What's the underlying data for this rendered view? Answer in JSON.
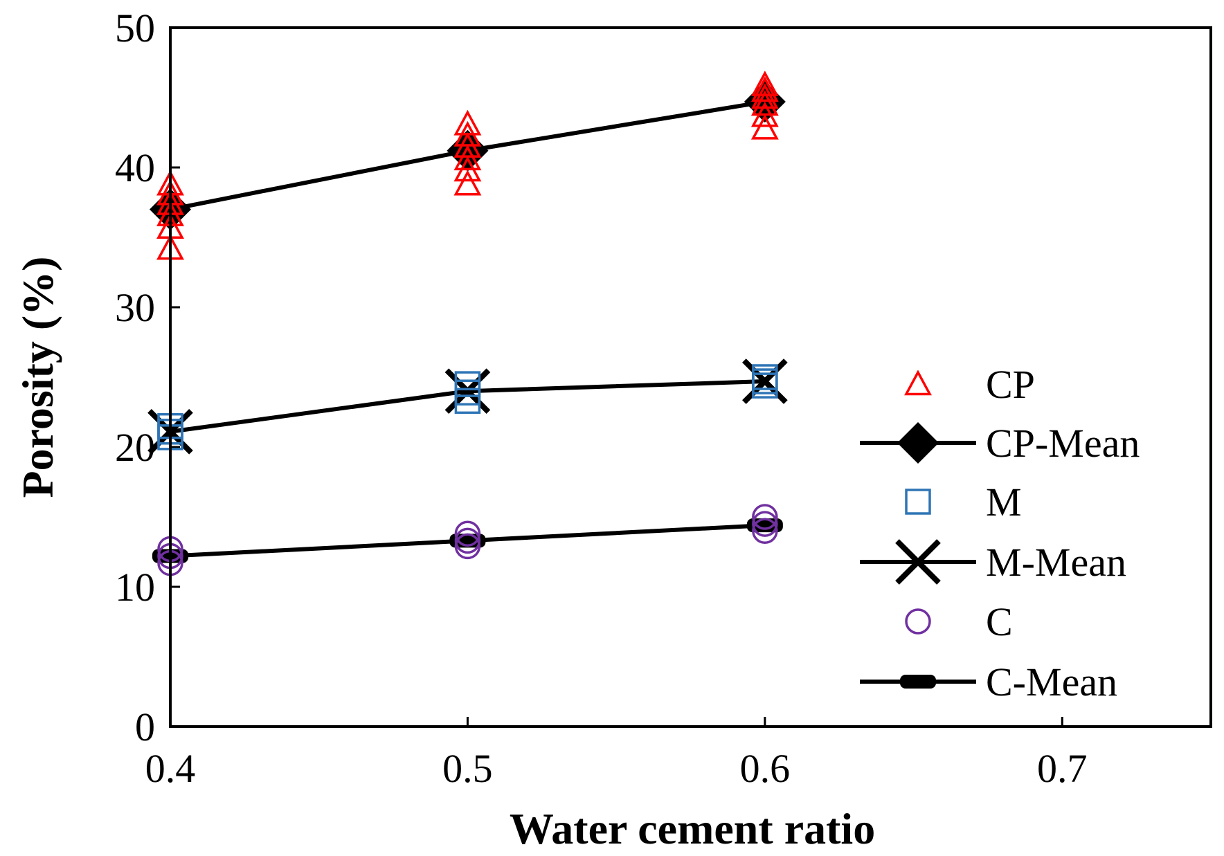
{
  "chart_data": {
    "type": "scatter",
    "title": "",
    "xlabel": "Water cement ratio",
    "ylabel": "Porosity (%)",
    "xlim": [
      0.4,
      0.75
    ],
    "ylim": [
      0,
      50
    ],
    "xticks": [
      "0.4",
      "0.5",
      "0.6",
      "0.7"
    ],
    "yticks": [
      "0",
      "10",
      "20",
      "30",
      "40",
      "50"
    ],
    "legend_position": "right",
    "colors": {
      "CP": "#ff0000",
      "M": "#2e75b6",
      "C": "#7030a0",
      "mean": "#000000"
    },
    "series": [
      {
        "name": "CP",
        "kind": "points",
        "marker": "triangle-open",
        "color": "#ff0000",
        "points": [
          [
            0.4,
            34.2
          ],
          [
            0.4,
            35.7
          ],
          [
            0.4,
            36.6
          ],
          [
            0.4,
            37.4
          ],
          [
            0.4,
            38.1
          ],
          [
            0.4,
            38.8
          ],
          [
            0.5,
            38.8
          ],
          [
            0.5,
            39.8
          ],
          [
            0.5,
            40.6
          ],
          [
            0.5,
            41.5
          ],
          [
            0.5,
            42.3
          ],
          [
            0.5,
            43.1
          ],
          [
            0.6,
            42.8
          ],
          [
            0.6,
            43.7
          ],
          [
            0.6,
            44.5
          ],
          [
            0.6,
            45.0
          ],
          [
            0.6,
            45.5
          ],
          [
            0.6,
            45.9
          ]
        ]
      },
      {
        "name": "CP-Mean",
        "kind": "line",
        "marker": "diamond",
        "color": "#000000",
        "points": [
          [
            0.4,
            37.0
          ],
          [
            0.5,
            41.2
          ],
          [
            0.6,
            44.7
          ]
        ]
      },
      {
        "name": "M",
        "kind": "points",
        "marker": "square-open",
        "color": "#2e75b6",
        "points": [
          [
            0.4,
            20.7
          ],
          [
            0.4,
            21.1
          ],
          [
            0.4,
            21.5
          ],
          [
            0.5,
            23.3
          ],
          [
            0.5,
            23.9
          ],
          [
            0.5,
            24.5
          ],
          [
            0.6,
            24.4
          ],
          [
            0.6,
            24.7
          ],
          [
            0.6,
            25.0
          ]
        ]
      },
      {
        "name": "M-Mean",
        "kind": "line",
        "marker": "x",
        "color": "#000000",
        "points": [
          [
            0.4,
            21.1
          ],
          [
            0.5,
            24.0
          ],
          [
            0.6,
            24.7
          ]
        ]
      },
      {
        "name": "C",
        "kind": "points",
        "marker": "circle-open",
        "color": "#7030a0",
        "points": [
          [
            0.4,
            11.7
          ],
          [
            0.4,
            12.2
          ],
          [
            0.4,
            12.7
          ],
          [
            0.5,
            12.9
          ],
          [
            0.5,
            13.3
          ],
          [
            0.5,
            13.8
          ],
          [
            0.6,
            14.0
          ],
          [
            0.6,
            14.5
          ],
          [
            0.6,
            15.0
          ]
        ]
      },
      {
        "name": "C-Mean",
        "kind": "line",
        "marker": "bar",
        "color": "#000000",
        "points": [
          [
            0.4,
            12.2
          ],
          [
            0.5,
            13.3
          ],
          [
            0.6,
            14.4
          ]
        ]
      }
    ]
  }
}
